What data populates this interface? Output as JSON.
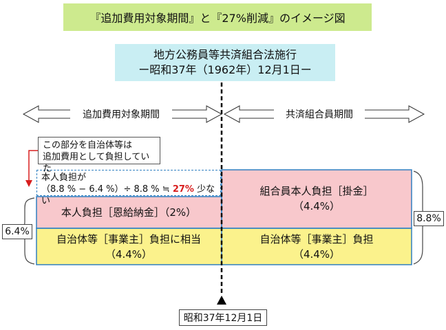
{
  "title": "『追加費用対象期間』と『27%削減』のイメージ図",
  "law": {
    "line1": "地方公務員等共済組合法施行",
    "line2": "ー昭和37年（1962年）12月1日ー"
  },
  "periods": {
    "left": "追加費用対象期間",
    "right": "共済組合員期間"
  },
  "note": {
    "line1": "この部分を自治体等は",
    "line2": "追加費用として負担していた"
  },
  "reduction": {
    "line1": "本人負担が",
    "line2_pre": "（8.8 % − 6.4 %）÷ 8.8 % ≒ ",
    "line2_highlight": "27%",
    "line2_post": " 少ない",
    "highlight_color": "#d81e1e"
  },
  "blocks": {
    "left_personal": "本人負担［恩給納金］（2%）",
    "right_personal_1": "組合員本人負担［掛金］",
    "right_personal_2": "（4.4%）",
    "left_employer_1": "自治体等［事業主］負担に相当",
    "left_employer_2": "（4.4%）",
    "right_employer_1": "自治体等［事業主］負担",
    "right_employer_2": "（4.4%）"
  },
  "totals": {
    "left": "6.4%",
    "right": "8.8%"
  },
  "date_marker": "昭和37年12月1日",
  "colors": {
    "title_bg": "#cdea8e",
    "law_bg": "#c9eef3",
    "pink": "#f8c8cc",
    "yellow": "#fbf28c",
    "frame_blue": "#2f7fc1"
  }
}
